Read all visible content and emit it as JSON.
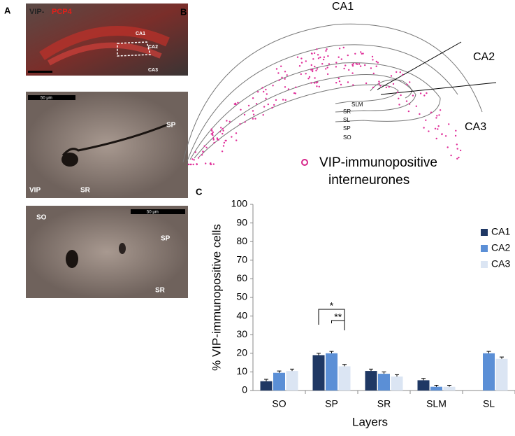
{
  "panel_a": {
    "label": "A",
    "image1": {
      "title": "VIP-",
      "stain": "PCP4",
      "regions": [
        "CA1",
        "CA2",
        "CA3"
      ]
    },
    "image2": {
      "scale": "50 μm",
      "labels": [
        "SP",
        "VIP",
        "SR"
      ]
    },
    "image3": {
      "scale": "50 μm",
      "labels": [
        "SO",
        "SP",
        "SR"
      ]
    }
  },
  "panel_b": {
    "label": "B",
    "regions": [
      "CA1",
      "CA2",
      "CA3"
    ],
    "layers": [
      "SLM",
      "SR",
      "SL",
      "SP",
      "SO"
    ],
    "legend": [
      "VIP-immunopositive",
      "interneurones"
    ]
  },
  "chart_data": {
    "type": "bar",
    "label": "C",
    "x_label": "Layers",
    "y_label": "% VIP-immunopositive cells",
    "categories": [
      "SO",
      "SP",
      "SR",
      "SLM",
      "SL"
    ],
    "series": [
      {
        "name": "CA1",
        "color": "#1f3864",
        "values": [
          5,
          19,
          10.5,
          5.5,
          null
        ],
        "errors": [
          1,
          1,
          1,
          1,
          null
        ]
      },
      {
        "name": "CA2",
        "color": "#5b8fd6",
        "values": [
          9.5,
          20,
          9,
          2,
          20
        ],
        "errors": [
          1,
          1,
          1,
          0.8,
          1
        ]
      },
      {
        "name": "CA3",
        "color": "#dbe5f3",
        "values": [
          10.5,
          13,
          7.5,
          2,
          17
        ],
        "errors": [
          1,
          1,
          1,
          0.8,
          1
        ]
      }
    ],
    "annotations": [
      "*",
      "**"
    ],
    "ylim": [
      0,
      100
    ],
    "yticks": [
      0,
      10,
      20,
      30,
      40,
      50,
      60,
      70,
      80,
      90,
      100
    ],
    "legend": "upper right"
  }
}
